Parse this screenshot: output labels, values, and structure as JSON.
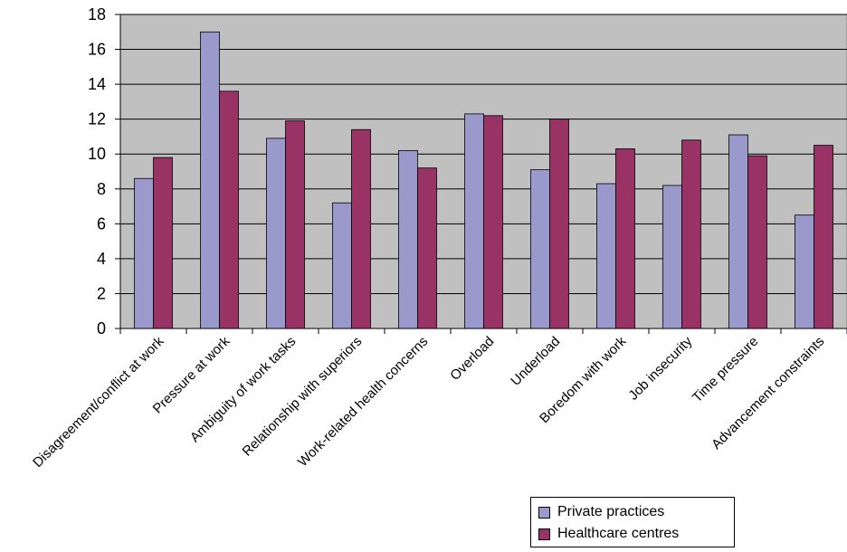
{
  "chart_data": {
    "type": "bar",
    "categories": [
      "Disagreement/conflict at work",
      "Pressure at work",
      "Ambiguity of work tasks",
      "Relationship with superiors",
      "Work-related health concerns",
      "Overload",
      "Underload",
      "Boredom with work",
      "Job insecurity",
      "Time pressure",
      "Advancement constraints"
    ],
    "series": [
      {
        "name": "Private practices",
        "color": "#9999cc",
        "values": [
          8.6,
          17.0,
          10.9,
          7.2,
          10.2,
          12.3,
          9.1,
          8.3,
          8.2,
          11.1,
          6.5
        ]
      },
      {
        "name": "Healthcare centres",
        "color": "#993366",
        "values": [
          9.8,
          13.6,
          11.9,
          11.4,
          9.2,
          12.2,
          12.0,
          10.3,
          10.8,
          9.9,
          10.5
        ]
      }
    ],
    "yticks": [
      0,
      2,
      4,
      6,
      8,
      10,
      12,
      14,
      16,
      18
    ],
    "ylim": [
      0,
      18
    ],
    "grid": true,
    "legend_position": "bottom-right",
    "plot_background": "#c0c0c0"
  }
}
